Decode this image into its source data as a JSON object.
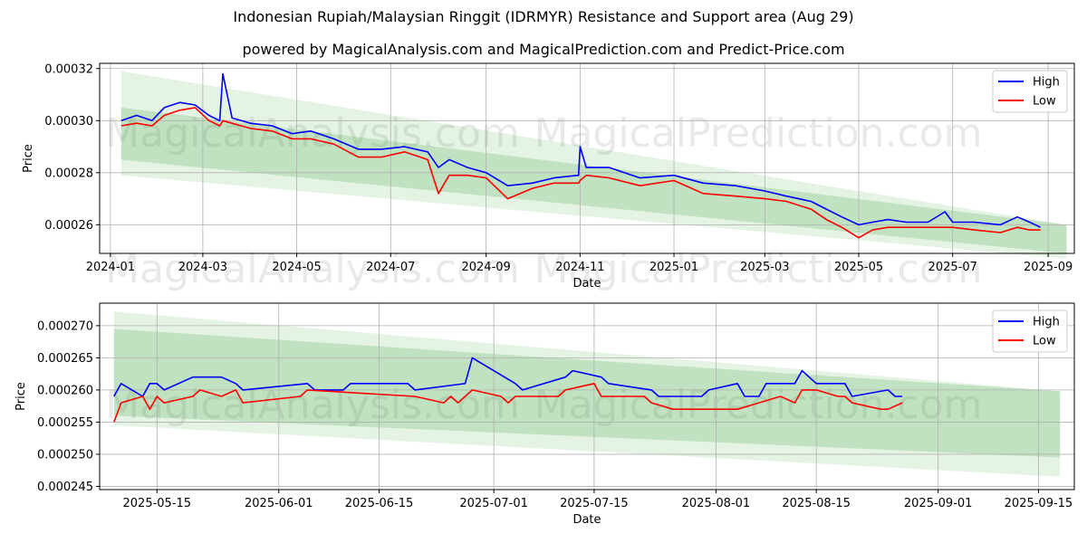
{
  "title": "Indonesian Rupiah/Malaysian Ringgit (IDRMYR) Resistance and Support area (Aug 29)",
  "subtitle": "powered by MagicalAnalysis.com and MagicalPrediction.com and Predict-Price.com",
  "watermarks": [
    "MagicalAnalysis.com",
    "MagicalPrediction.com"
  ],
  "colors": {
    "high": "#0000ff",
    "low": "#ff0000",
    "band": "#2ca02c",
    "grid": "#b0b0b0"
  },
  "chart_data": [
    {
      "type": "line",
      "xlabel": "Date",
      "ylabel": "Price",
      "x_ticks": [
        "2024-01",
        "2024-03",
        "2024-05",
        "2024-07",
        "2024-09",
        "2024-11",
        "2025-01",
        "2025-03",
        "2025-05",
        "2025-07",
        "2025-09"
      ],
      "y_ticks": [
        "0.00026",
        "0.00028",
        "0.00030",
        "0.00032"
      ],
      "xlim": [
        "2023-12-25",
        "2025-09-18"
      ],
      "ylim": [
        0.000249,
        0.000322
      ],
      "grid": true,
      "legend": "top-right",
      "bands": [
        {
          "x": [
            "2024-01-08",
            "2025-09-13"
          ],
          "upper": [
            0.000319,
            0.00026
          ],
          "lower": [
            0.000279,
            0.000247
          ],
          "opacity": 0.12
        },
        {
          "x": [
            "2024-01-08",
            "2025-09-13"
          ],
          "upper": [
            0.000305,
            0.00026
          ],
          "lower": [
            0.000285,
            0.000249
          ],
          "opacity": 0.2
        }
      ],
      "series": [
        {
          "name": "High",
          "x": [
            "2024-01-08",
            "2024-01-18",
            "2024-01-28",
            "2024-02-05",
            "2024-02-15",
            "2024-02-25",
            "2024-03-05",
            "2024-03-12",
            "2024-03-14",
            "2024-03-20",
            "2024-04-01",
            "2024-04-15",
            "2024-04-28",
            "2024-05-10",
            "2024-05-25",
            "2024-06-10",
            "2024-06-25",
            "2024-07-10",
            "2024-07-25",
            "2024-08-01",
            "2024-08-08",
            "2024-08-20",
            "2024-09-01",
            "2024-09-15",
            "2024-10-01",
            "2024-10-15",
            "2024-10-31",
            "2024-11-01",
            "2024-11-05",
            "2024-11-20",
            "2024-12-10",
            "2025-01-01",
            "2025-01-20",
            "2025-02-10",
            "2025-03-01",
            "2025-03-15",
            "2025-03-31",
            "2025-04-10",
            "2025-04-20",
            "2025-05-01",
            "2025-05-10",
            "2025-05-20",
            "2025-06-01",
            "2025-06-15",
            "2025-06-26",
            "2025-07-01",
            "2025-07-15",
            "2025-08-01",
            "2025-08-12",
            "2025-08-20",
            "2025-08-27"
          ],
          "values": [
            0.0003,
            0.000302,
            0.0003,
            0.000305,
            0.000307,
            0.000306,
            0.000302,
            0.0003,
            0.000318,
            0.000301,
            0.000299,
            0.000298,
            0.000295,
            0.000296,
            0.000293,
            0.000289,
            0.000289,
            0.00029,
            0.000288,
            0.000282,
            0.000285,
            0.000282,
            0.00028,
            0.000275,
            0.000276,
            0.000278,
            0.000279,
            0.00029,
            0.000282,
            0.000282,
            0.000278,
            0.000279,
            0.000276,
            0.000275,
            0.000273,
            0.000271,
            0.000269,
            0.000266,
            0.000263,
            0.00026,
            0.000261,
            0.000262,
            0.000261,
            0.000261,
            0.000265,
            0.000261,
            0.000261,
            0.00026,
            0.000263,
            0.000261,
            0.000259
          ]
        },
        {
          "name": "Low",
          "x": [
            "2024-01-08",
            "2024-01-18",
            "2024-01-28",
            "2024-02-05",
            "2024-02-15",
            "2024-02-25",
            "2024-03-05",
            "2024-03-12",
            "2024-03-14",
            "2024-03-20",
            "2024-04-01",
            "2024-04-15",
            "2024-04-28",
            "2024-05-10",
            "2024-05-25",
            "2024-06-10",
            "2024-06-25",
            "2024-07-10",
            "2024-07-25",
            "2024-08-01",
            "2024-08-08",
            "2024-08-20",
            "2024-09-01",
            "2024-09-15",
            "2024-10-01",
            "2024-10-15",
            "2024-10-31",
            "2024-11-01",
            "2024-11-05",
            "2024-11-20",
            "2024-12-10",
            "2025-01-01",
            "2025-01-20",
            "2025-02-10",
            "2025-03-01",
            "2025-03-15",
            "2025-03-31",
            "2025-04-10",
            "2025-04-20",
            "2025-05-01",
            "2025-05-10",
            "2025-05-20",
            "2025-06-01",
            "2025-06-15",
            "2025-06-26",
            "2025-07-01",
            "2025-07-15",
            "2025-08-01",
            "2025-08-12",
            "2025-08-20",
            "2025-08-27"
          ],
          "values": [
            0.000298,
            0.000299,
            0.000298,
            0.000302,
            0.000304,
            0.000305,
            0.0003,
            0.000298,
            0.0003,
            0.000299,
            0.000297,
            0.000296,
            0.000293,
            0.000293,
            0.000291,
            0.000286,
            0.000286,
            0.000288,
            0.000285,
            0.000272,
            0.000279,
            0.000279,
            0.000278,
            0.00027,
            0.000274,
            0.000276,
            0.000276,
            0.000277,
            0.000279,
            0.000278,
            0.000275,
            0.000277,
            0.000272,
            0.000271,
            0.00027,
            0.000269,
            0.000266,
            0.000262,
            0.000259,
            0.000255,
            0.000258,
            0.000259,
            0.000259,
            0.000259,
            0.000259,
            0.000259,
            0.000258,
            0.000257,
            0.000259,
            0.000258,
            0.000258
          ]
        }
      ]
    },
    {
      "type": "line",
      "xlabel": "Date",
      "ylabel": "Price",
      "x_ticks": [
        "2025-05-15",
        "2025-06-01",
        "2025-06-15",
        "2025-07-01",
        "2025-07-15",
        "2025-08-01",
        "2025-08-15",
        "2025-09-01",
        "2025-09-15"
      ],
      "y_ticks": [
        "0.000245",
        "0.000250",
        "0.000255",
        "0.000260",
        "0.000265",
        "0.000270"
      ],
      "xlim": [
        "2025-05-07",
        "2025-09-20"
      ],
      "ylim": [
        0.0002445,
        0.0002735
      ],
      "grid": true,
      "legend": "top-right",
      "bands": [
        {
          "x": [
            "2025-05-09",
            "2025-09-18"
          ],
          "upper": [
            0.0002722,
            0.0002598
          ],
          "lower": [
            0.0002545,
            0.0002465
          ],
          "opacity": 0.12
        },
        {
          "x": [
            "2025-05-09",
            "2025-09-18"
          ],
          "upper": [
            0.0002695,
            0.0002598
          ],
          "lower": [
            0.000256,
            0.0002495
          ],
          "opacity": 0.2
        }
      ],
      "series": [
        {
          "name": "High",
          "x": [
            "2025-05-09",
            "2025-05-10",
            "2025-05-13",
            "2025-05-14",
            "2025-05-15",
            "2025-05-16",
            "2025-05-20",
            "2025-05-24",
            "2025-05-26",
            "2025-05-27",
            "2025-06-05",
            "2025-06-06",
            "2025-06-10",
            "2025-06-11",
            "2025-06-19",
            "2025-06-20",
            "2025-06-27",
            "2025-06-28",
            "2025-07-04",
            "2025-07-05",
            "2025-07-11",
            "2025-07-12",
            "2025-07-16",
            "2025-07-17",
            "2025-07-23",
            "2025-07-24",
            "2025-07-30",
            "2025-07-31",
            "2025-08-04",
            "2025-08-05",
            "2025-08-07",
            "2025-08-08",
            "2025-08-12",
            "2025-08-13",
            "2025-08-15",
            "2025-08-16",
            "2025-08-19",
            "2025-08-20",
            "2025-08-25",
            "2025-08-26",
            "2025-08-27"
          ],
          "values": [
            0.000259,
            0.000261,
            0.000259,
            0.000261,
            0.000261,
            0.00026,
            0.000262,
            0.000262,
            0.000261,
            0.00026,
            0.000261,
            0.00026,
            0.00026,
            0.000261,
            0.000261,
            0.00026,
            0.000261,
            0.000265,
            0.000261,
            0.00026,
            0.000262,
            0.000263,
            0.000262,
            0.000261,
            0.00026,
            0.000259,
            0.000259,
            0.00026,
            0.000261,
            0.000259,
            0.000259,
            0.000261,
            0.000261,
            0.000263,
            0.000261,
            0.000261,
            0.000261,
            0.000259,
            0.00026,
            0.000259,
            0.000259
          ]
        },
        {
          "name": "Low",
          "x": [
            "2025-05-09",
            "2025-05-10",
            "2025-05-13",
            "2025-05-14",
            "2025-05-15",
            "2025-05-16",
            "2025-05-20",
            "2025-05-21",
            "2025-05-24",
            "2025-05-26",
            "2025-05-27",
            "2025-06-04",
            "2025-06-05",
            "2025-06-20",
            "2025-06-24",
            "2025-06-25",
            "2025-06-26",
            "2025-06-28",
            "2025-07-02",
            "2025-07-03",
            "2025-07-04",
            "2025-07-10",
            "2025-07-11",
            "2025-07-15",
            "2025-07-16",
            "2025-07-22",
            "2025-07-23",
            "2025-07-26",
            "2025-07-28",
            "2025-08-04",
            "2025-08-07",
            "2025-08-10",
            "2025-08-12",
            "2025-08-13",
            "2025-08-15",
            "2025-08-18",
            "2025-08-19",
            "2025-08-20",
            "2025-08-24",
            "2025-08-25",
            "2025-08-27"
          ],
          "values": [
            0.000255,
            0.000258,
            0.000259,
            0.000257,
            0.000259,
            0.000258,
            0.000259,
            0.00026,
            0.000259,
            0.00026,
            0.000258,
            0.000259,
            0.00026,
            0.000259,
            0.000258,
            0.000259,
            0.000258,
            0.00026,
            0.000259,
            0.000258,
            0.000259,
            0.000259,
            0.00026,
            0.000261,
            0.000259,
            0.000259,
            0.000258,
            0.000257,
            0.000257,
            0.000257,
            0.000258,
            0.000259,
            0.000258,
            0.00026,
            0.00026,
            0.000259,
            0.000259,
            0.000258,
            0.000257,
            0.000257,
            0.000258
          ]
        }
      ]
    }
  ]
}
